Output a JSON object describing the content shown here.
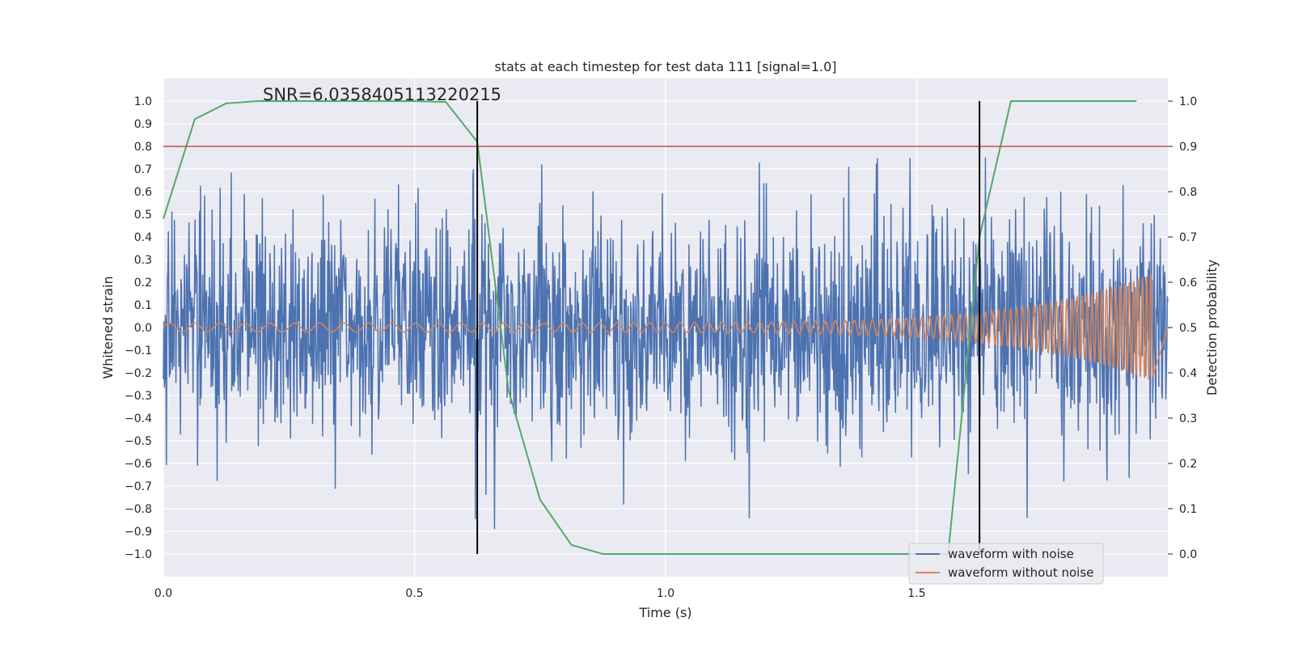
{
  "chart_data": {
    "type": "line",
    "title": "stats at each timestep for test data 111 [signal=1.0]",
    "annotation": "SNR=6.0358405113220215",
    "xlabel": "Time (s)",
    "ylabel": "Whitened strain",
    "y2label": "Detection probability",
    "xlim": [
      0.0,
      2.0
    ],
    "ylim": [
      -1.1,
      1.1
    ],
    "y2lim": [
      -0.05,
      1.05
    ],
    "xticks": [
      "0.0",
      "0.5",
      "1.0",
      "1.5"
    ],
    "yticks": [
      "1.0",
      "0.9",
      "0.8",
      "0.7",
      "0.6",
      "0.5",
      "0.4",
      "0.3",
      "0.2",
      "0.1",
      "0.0",
      "−0.1",
      "−0.2",
      "−0.3",
      "−0.4",
      "−0.5",
      "−0.6",
      "−0.7",
      "−0.8",
      "−0.9",
      "−1.0"
    ],
    "y2ticks": [
      "1.0",
      "0.9",
      "0.8",
      "0.7",
      "0.6",
      "0.5",
      "0.4",
      "0.3",
      "0.2",
      "0.1",
      "0.0"
    ],
    "grid": true,
    "legend_placement": "lower-right",
    "threshold": {
      "y": 0.8,
      "color": "#c44e52"
    },
    "vlines": [
      {
        "x": 0.625,
        "ymin": -1.0,
        "ymax": 1.0
      },
      {
        "x": 1.625,
        "ymin": -1.0,
        "ymax": 1.0
      }
    ],
    "series": [
      {
        "name": "waveform with noise",
        "color": "#4c72b0",
        "axis": "left",
        "kind": "noise",
        "description_values": {
          "std": 0.25,
          "range": [
            -1.0,
            1.0
          ]
        }
      },
      {
        "name": "waveform without noise",
        "color": "#dd8452",
        "axis": "left",
        "kind": "chirp",
        "amplitude_start": 0.02,
        "amplitude_end": 0.24,
        "freq_start_hz": 20,
        "freq_end_hz": 120,
        "x_end": 1.97
      },
      {
        "name": "",
        "color": "#55a868",
        "axis": "right",
        "x": [
          0.0,
          0.0625,
          0.125,
          0.1875,
          0.25,
          0.3125,
          0.375,
          0.4375,
          0.5,
          0.5625,
          0.625,
          0.6875,
          0.75,
          0.8125,
          0.875,
          0.9375,
          1.0,
          1.0625,
          1.125,
          1.1875,
          1.25,
          1.3125,
          1.375,
          1.4375,
          1.5,
          1.5625,
          1.625,
          1.6875,
          1.75,
          1.8125,
          1.875,
          1.9375
        ],
        "values": [
          0.74,
          0.96,
          0.995,
          1.0,
          1.0,
          1.0,
          1.0,
          1.0,
          1.0,
          0.998,
          0.91,
          0.36,
          0.12,
          0.02,
          0.0,
          0.0,
          0.0,
          0.0,
          0.0,
          0.0,
          0.0,
          0.0,
          0.0,
          0.0,
          0.0,
          0.0,
          0.7,
          1.0,
          1.0,
          1.0,
          1.0,
          1.0
        ]
      }
    ]
  }
}
